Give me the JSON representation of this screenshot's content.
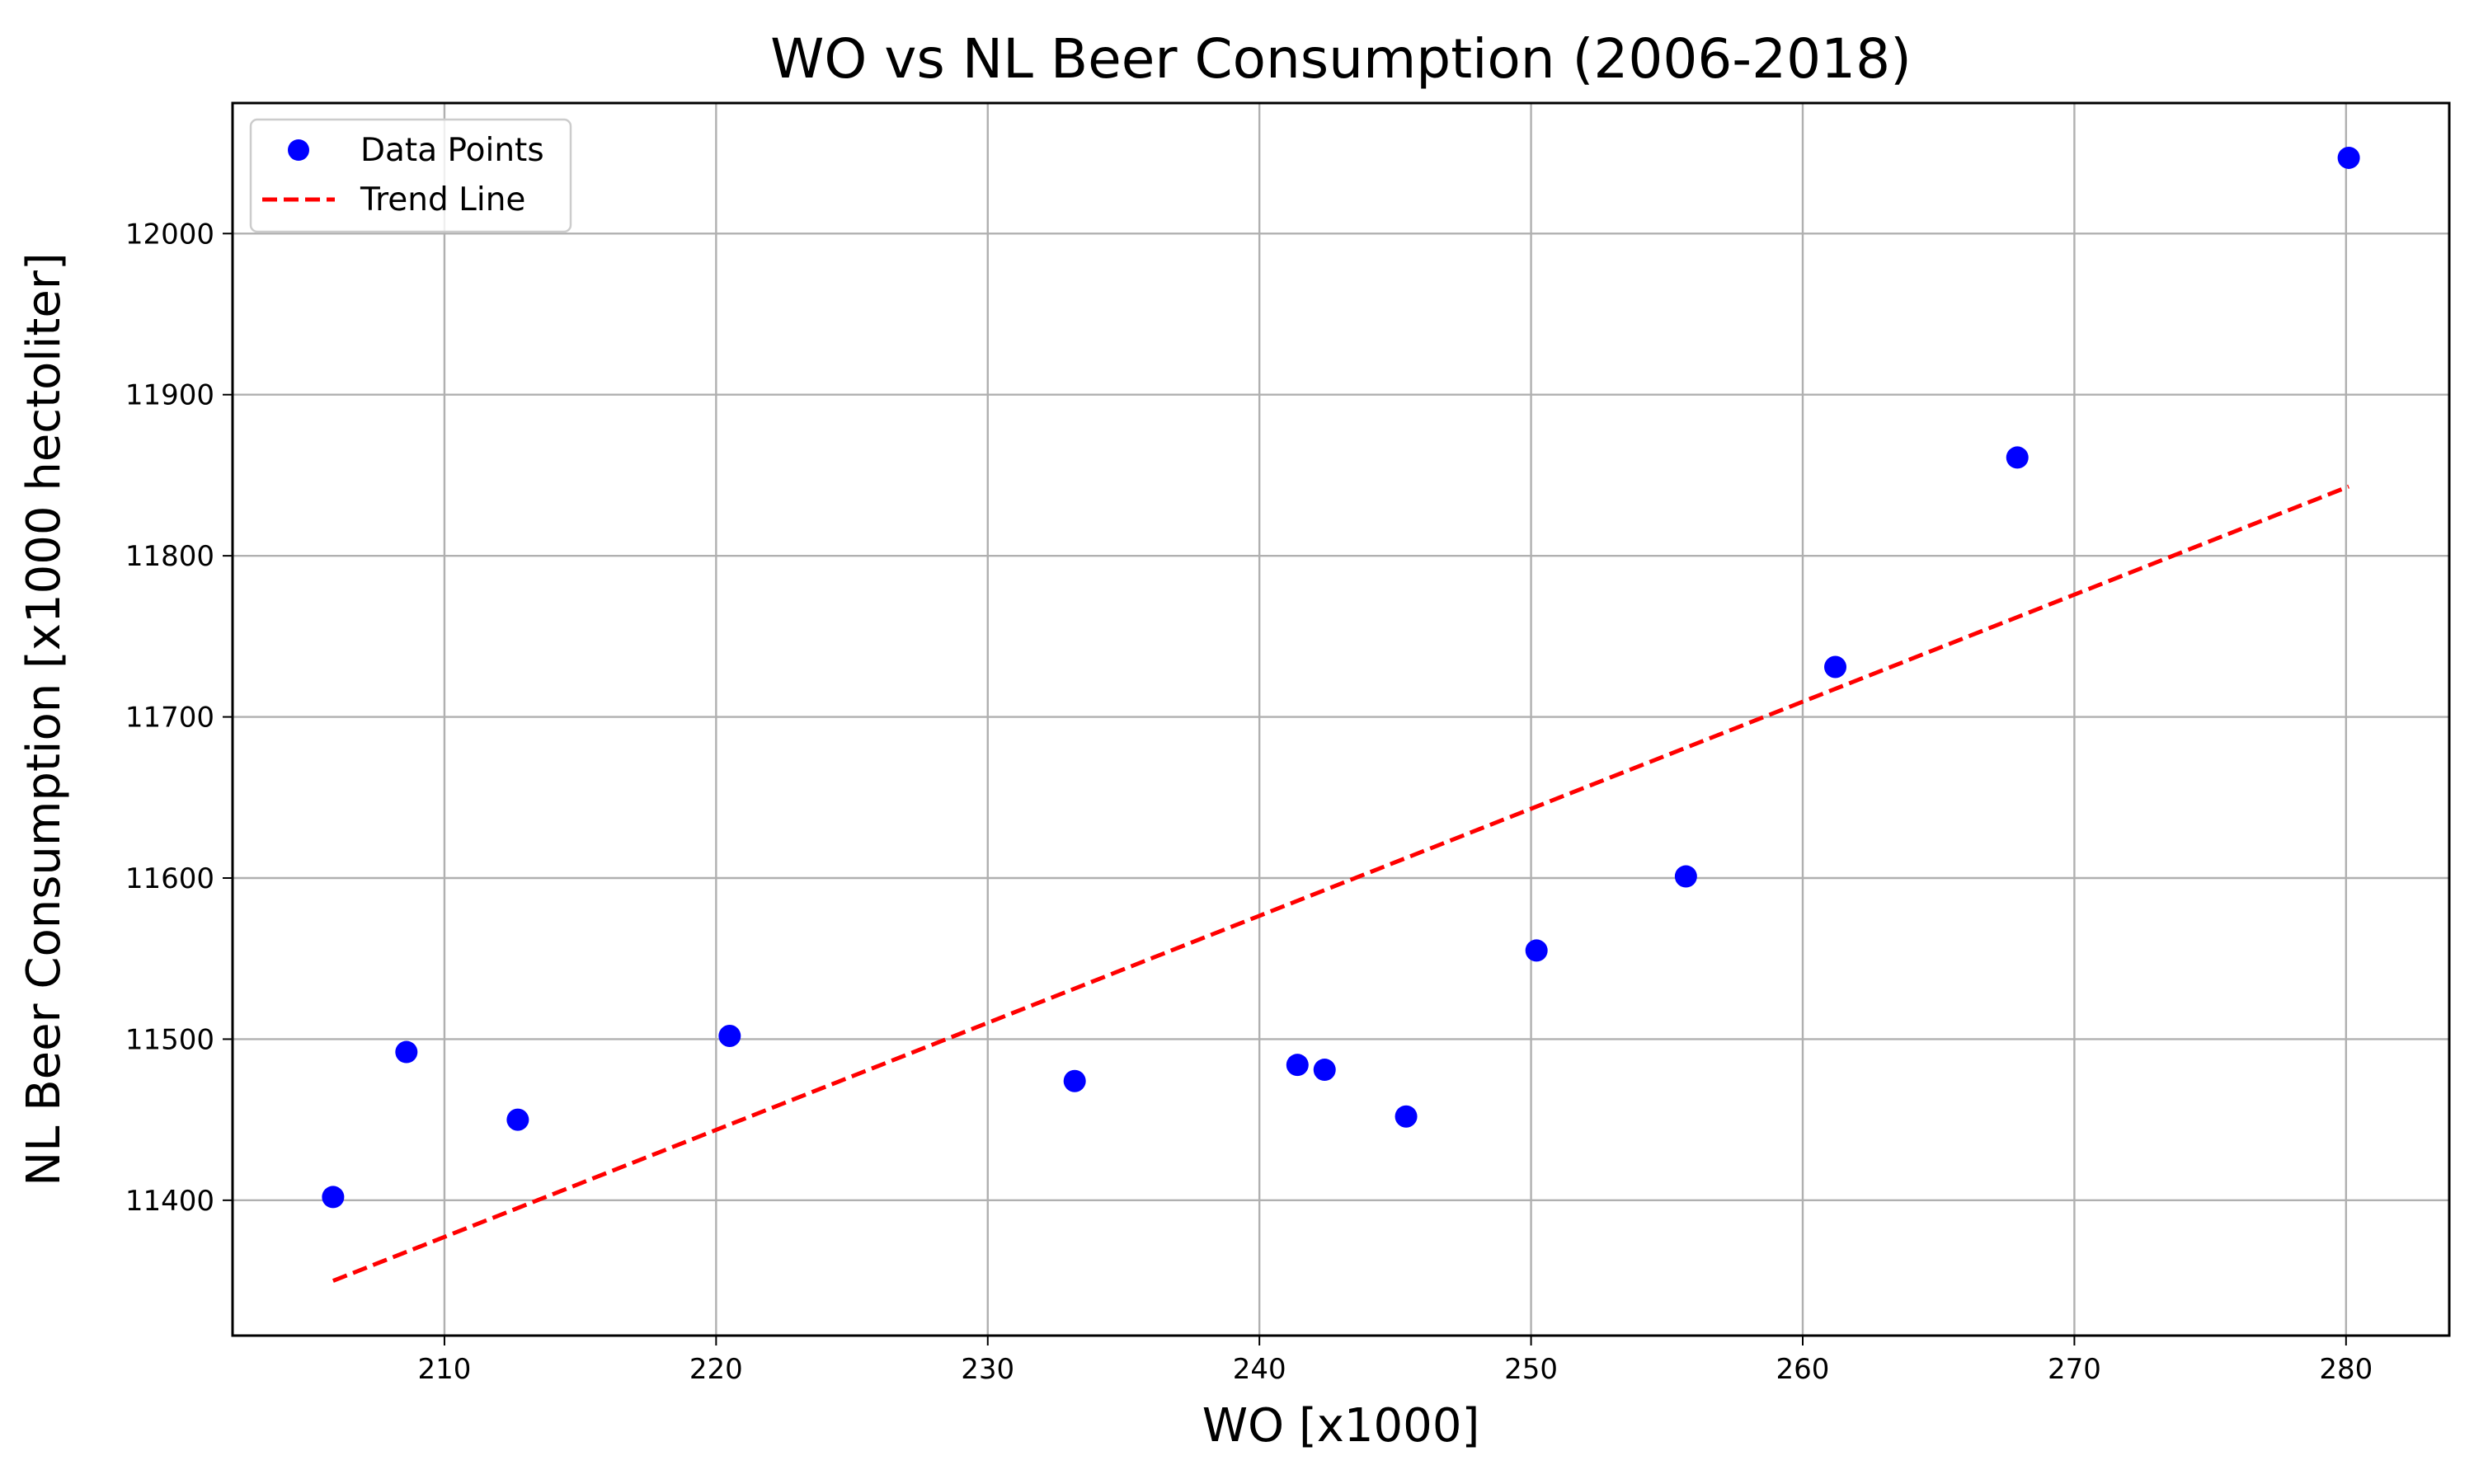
{
  "chart_data": {
    "type": "scatter",
    "title": "WO vs NL Beer Consumption (2006-2018)",
    "xlabel": "WO [x1000]",
    "ylabel": "NL Beer Consumption [x1000 hectoliter]",
    "xlim": [
      202.2,
      283.8
    ],
    "ylim": [
      11316,
      12081
    ],
    "xticks": [
      210,
      220,
      230,
      240,
      250,
      260,
      270,
      280
    ],
    "yticks": [
      11400,
      11500,
      11600,
      11700,
      11800,
      11900,
      12000
    ],
    "grid": true,
    "legend": {
      "position": "top-left",
      "entries": [
        "Data Points",
        "Trend Line"
      ]
    },
    "series": [
      {
        "name": "Data Points",
        "kind": "scatter",
        "color": "#0000ff",
        "points": [
          {
            "x": 205.9,
            "y": 11402
          },
          {
            "x": 208.6,
            "y": 11492
          },
          {
            "x": 212.7,
            "y": 11450
          },
          {
            "x": 220.5,
            "y": 11502
          },
          {
            "x": 233.2,
            "y": 11474
          },
          {
            "x": 241.4,
            "y": 11484
          },
          {
            "x": 242.4,
            "y": 11481
          },
          {
            "x": 245.4,
            "y": 11452
          },
          {
            "x": 250.2,
            "y": 11555
          },
          {
            "x": 255.7,
            "y": 11601
          },
          {
            "x": 261.2,
            "y": 11731
          },
          {
            "x": 267.9,
            "y": 11861
          },
          {
            "x": 280.1,
            "y": 12047
          }
        ]
      },
      {
        "name": "Trend Line",
        "kind": "line",
        "style": "dashed",
        "color": "#ff0000",
        "points": [
          {
            "x": 205.9,
            "y": 11350
          },
          {
            "x": 280.1,
            "y": 11843
          }
        ]
      }
    ]
  }
}
